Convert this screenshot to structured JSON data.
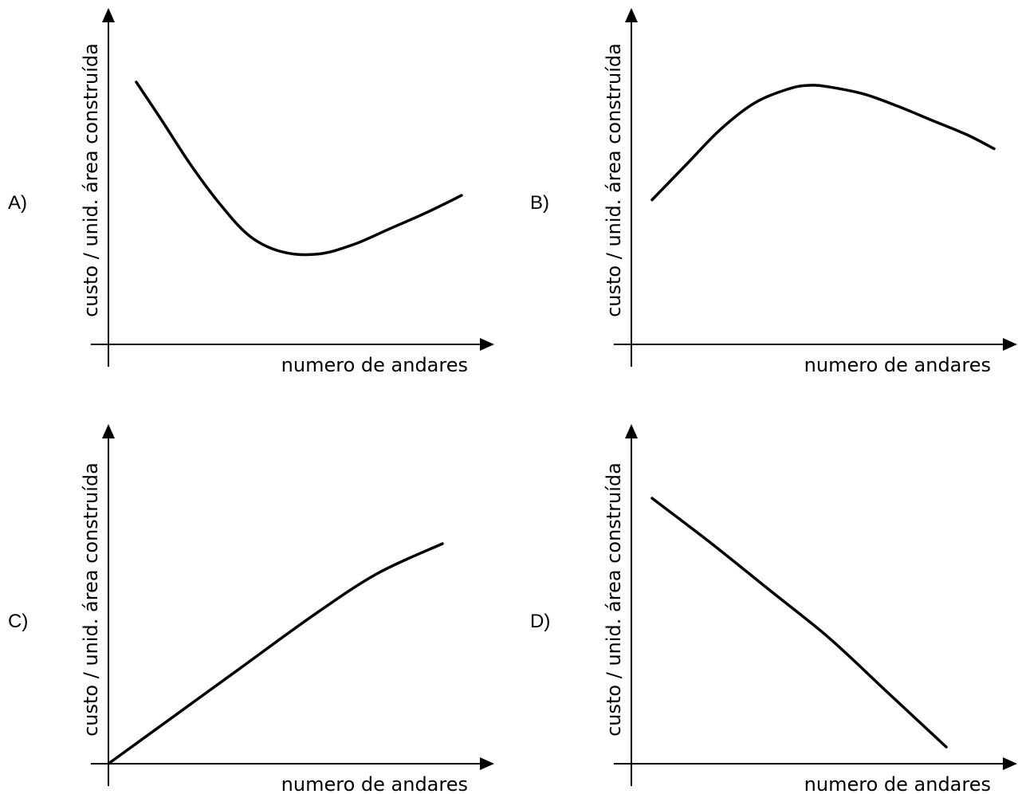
{
  "chart_data": [
    {
      "type": "line",
      "option_label": "A)",
      "xlabel": "numero de andares",
      "ylabel": "custo / unid. área construída",
      "series": [
        {
          "x": [
            0.0,
            0.08,
            0.17,
            0.26,
            0.35,
            0.45,
            0.56,
            0.67,
            0.78,
            0.89,
            1.0
          ],
          "values": [
            1.0,
            0.8,
            0.57,
            0.37,
            0.21,
            0.13,
            0.12,
            0.17,
            0.25,
            0.33,
            0.42
          ]
        }
      ]
    },
    {
      "type": "line",
      "option_label": "B)",
      "xlabel": "numero de andares",
      "ylabel": "custo / unid. área construída",
      "series": [
        {
          "x": [
            0.0,
            0.1,
            0.2,
            0.3,
            0.4,
            0.46,
            0.52,
            0.62,
            0.72,
            0.82,
            0.92,
            1.0
          ],
          "values": [
            0.35,
            0.55,
            0.75,
            0.9,
            0.98,
            1.0,
            0.99,
            0.95,
            0.88,
            0.8,
            0.72,
            0.64
          ]
        }
      ]
    },
    {
      "type": "line",
      "option_label": "C)",
      "xlabel": "numero de andares",
      "ylabel": "custo / unid. área construída",
      "series": [
        {
          "x": [
            0.0,
            0.2,
            0.4,
            0.6,
            0.8,
            1.0
          ],
          "values": [
            0.0,
            0.22,
            0.44,
            0.66,
            0.86,
            1.0
          ]
        }
      ]
    },
    {
      "type": "line",
      "option_label": "D)",
      "xlabel": "numero de andares",
      "ylabel": "custo / unid. área construída",
      "series": [
        {
          "x": [
            0.0,
            0.2,
            0.4,
            0.6,
            0.8,
            1.0
          ],
          "values": [
            1.0,
            0.82,
            0.63,
            0.44,
            0.22,
            0.0
          ]
        }
      ]
    }
  ]
}
